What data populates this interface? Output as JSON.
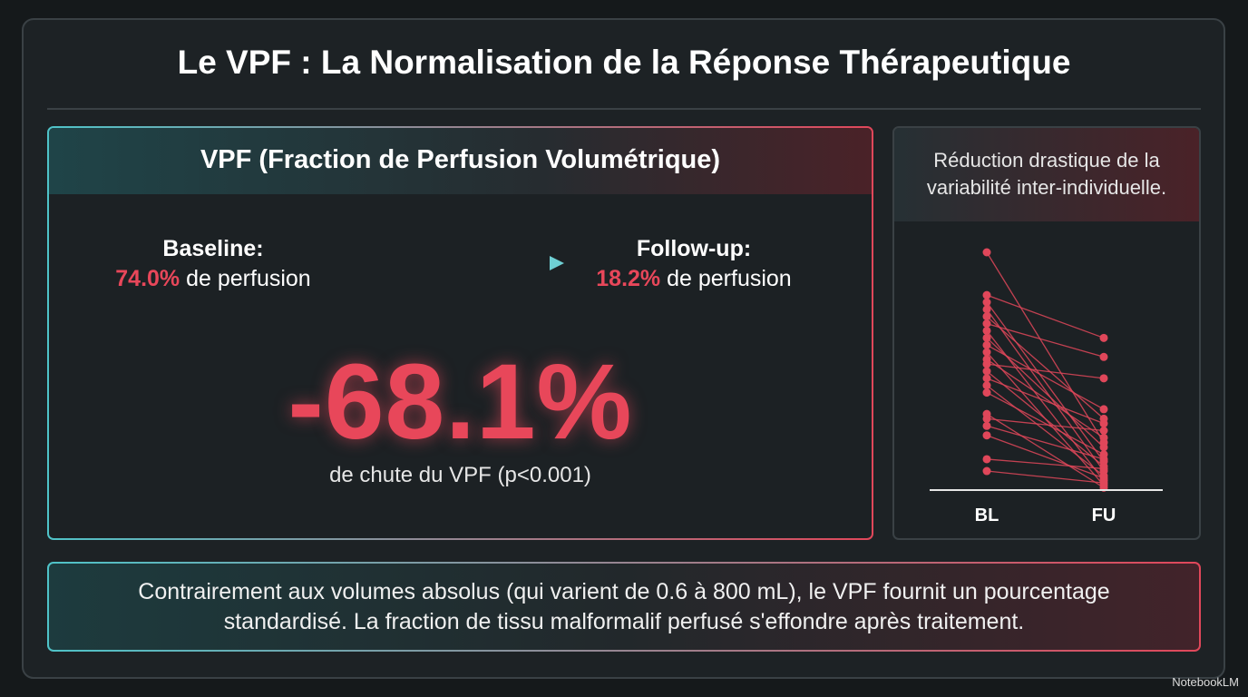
{
  "title": "Le VPF : La Normalisation de la Réponse Thérapeutique",
  "main_panel": {
    "title": "VPF (Fraction de Perfusion Volumétrique)",
    "baseline": {
      "label": "Baseline:",
      "value": "74.0%",
      "text": "de perfusion"
    },
    "followup": {
      "label": "Follow-up:",
      "value": "18.2%",
      "text": "de perfusion"
    },
    "big_number": "-68.1%",
    "caption": "de chute du VPF (p<0.001)"
  },
  "side_panel": {
    "caption": [
      "Réduction drastique de la",
      "variabilité inter-individuelle."
    ]
  },
  "chart_data": {
    "type": "paired",
    "categories": [
      "BL",
      "FU"
    ],
    "color": "#e0475a",
    "ylim": [
      0,
      100
    ],
    "values": [
      [
        100,
        20
      ],
      [
        82,
        64
      ],
      [
        79,
        12
      ],
      [
        76,
        8
      ],
      [
        73,
        30
      ],
      [
        70,
        56
      ],
      [
        67,
        4
      ],
      [
        64,
        18
      ],
      [
        61,
        34
      ],
      [
        58,
        2
      ],
      [
        55,
        22
      ],
      [
        53,
        47
      ],
      [
        50,
        10
      ],
      [
        47,
        28
      ],
      [
        44,
        6
      ],
      [
        41,
        15
      ],
      [
        32,
        1
      ],
      [
        30,
        25
      ],
      [
        27,
        13
      ],
      [
        23,
        5
      ],
      [
        13,
        9
      ],
      [
        8,
        3
      ]
    ]
  },
  "footer": [
    "Contrairement aux volumes absolus (qui varient de 0.6 à 800 mL), le VPF fournit un pourcentage",
    "standardisé. La fraction de tissu malformalif perfusé s'effondre après traitement."
  ],
  "brand": "NotebookLM"
}
